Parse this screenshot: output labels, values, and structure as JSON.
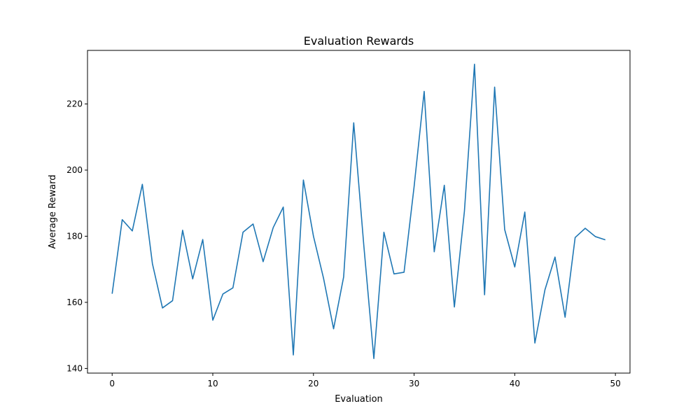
{
  "chart_data": {
    "type": "line",
    "title": "Evaluation Rewards",
    "xlabel": "Evaluation",
    "ylabel": "Average Reward",
    "xlim": [
      -2.45,
      51.45
    ],
    "ylim": [
      138.6,
      236.2
    ],
    "xticks": [
      0,
      10,
      20,
      30,
      40,
      50
    ],
    "yticks": [
      140,
      160,
      180,
      200,
      220
    ],
    "grid": false,
    "series": [
      {
        "color": "#1f77b4",
        "x": [
          0,
          1,
          2,
          3,
          4,
          5,
          6,
          7,
          8,
          9,
          10,
          11,
          12,
          13,
          14,
          15,
          16,
          17,
          18,
          19,
          20,
          21,
          22,
          23,
          24,
          25,
          26,
          27,
          28,
          29,
          30,
          31,
          32,
          33,
          34,
          35,
          36,
          37,
          38,
          39,
          40,
          41,
          42,
          43,
          44,
          45,
          46,
          47,
          48,
          49
        ],
        "values": [
          162.6,
          185.0,
          181.6,
          195.7,
          171.7,
          158.3,
          160.5,
          181.8,
          167.1,
          179.0,
          154.6,
          162.5,
          164.4,
          181.2,
          183.7,
          172.3,
          182.6,
          188.8,
          144.1,
          197.0,
          180.0,
          167.3,
          152.0,
          167.7,
          214.3,
          177.3,
          143.0,
          181.2,
          168.6,
          169.1,
          195.0,
          223.8,
          175.3,
          195.4,
          158.6,
          187.6,
          232.0,
          162.3,
          225.1,
          182.0,
          170.7,
          187.3,
          147.7,
          163.8,
          173.7,
          155.5,
          179.6,
          182.4,
          179.9,
          178.9
        ]
      }
    ]
  }
}
